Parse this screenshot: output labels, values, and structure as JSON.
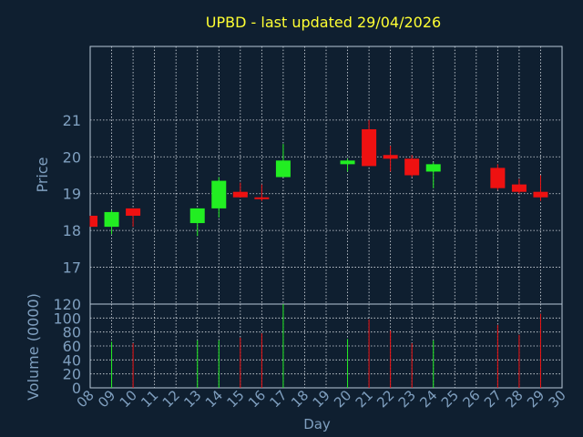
{
  "title": "UPBD - last updated 29/04/2026",
  "colors": {
    "background": "#0f1f30",
    "axis_text": "#7f9fbf",
    "title": "#ffff33",
    "grid": "#d8dde3",
    "up": "#22ee22",
    "down": "#ee1111",
    "frame": "#b8c8d8"
  },
  "chart_data": [
    {
      "type": "candlestick",
      "ylabel": "Price",
      "ylim": [
        16,
        23
      ],
      "yticks": [
        17,
        18,
        19,
        20,
        21
      ],
      "grid": true,
      "candles": [
        {
          "day": 8,
          "open": 18.4,
          "high": 18.4,
          "low": 18.1,
          "close": 18.1
        },
        {
          "day": 9,
          "open": 18.1,
          "high": 18.55,
          "low": 17.9,
          "close": 18.5
        },
        {
          "day": 10,
          "open": 18.6,
          "high": 18.6,
          "low": 18.1,
          "close": 18.4
        },
        {
          "day": 13,
          "open": 18.2,
          "high": 18.6,
          "low": 17.85,
          "close": 18.6
        },
        {
          "day": 14,
          "open": 18.6,
          "high": 19.45,
          "low": 18.35,
          "close": 19.35
        },
        {
          "day": 15,
          "open": 19.05,
          "high": 19.3,
          "low": 18.9,
          "close": 18.9
        },
        {
          "day": 16,
          "open": 18.9,
          "high": 19.25,
          "low": 18.8,
          "close": 18.85
        },
        {
          "day": 17,
          "open": 19.45,
          "high": 20.35,
          "low": 19.45,
          "close": 19.9
        },
        {
          "day": 20,
          "open": 19.8,
          "high": 19.95,
          "low": 19.6,
          "close": 19.9
        },
        {
          "day": 21,
          "open": 20.75,
          "high": 21.0,
          "low": 19.75,
          "close": 19.75
        },
        {
          "day": 22,
          "open": 20.05,
          "high": 20.3,
          "low": 19.6,
          "close": 19.95
        },
        {
          "day": 23,
          "open": 19.95,
          "high": 20.05,
          "low": 19.45,
          "close": 19.5
        },
        {
          "day": 24,
          "open": 19.6,
          "high": 19.85,
          "low": 19.15,
          "close": 19.8
        },
        {
          "day": 27,
          "open": 19.7,
          "high": 19.8,
          "low": 19.1,
          "close": 19.15
        },
        {
          "day": 28,
          "open": 19.25,
          "high": 19.4,
          "low": 19.0,
          "close": 19.05
        },
        {
          "day": 29,
          "open": 19.05,
          "high": 19.5,
          "low": 18.8,
          "close": 18.9
        }
      ]
    },
    {
      "type": "bar",
      "ylabel": "Volume (0000)",
      "ylim": [
        0,
        120
      ],
      "yticks": [
        0,
        20,
        40,
        60,
        80,
        100,
        120
      ],
      "grid": true,
      "bars": [
        {
          "day": 9,
          "value": 66,
          "direction": "up"
        },
        {
          "day": 10,
          "value": 64,
          "direction": "down"
        },
        {
          "day": 13,
          "value": 68,
          "direction": "up"
        },
        {
          "day": 14,
          "value": 68,
          "direction": "up"
        },
        {
          "day": 15,
          "value": 72,
          "direction": "down"
        },
        {
          "day": 16,
          "value": 78,
          "direction": "down"
        },
        {
          "day": 17,
          "value": 120,
          "direction": "up"
        },
        {
          "day": 20,
          "value": 70,
          "direction": "up"
        },
        {
          "day": 21,
          "value": 98,
          "direction": "down"
        },
        {
          "day": 22,
          "value": 82,
          "direction": "down"
        },
        {
          "day": 23,
          "value": 64,
          "direction": "down"
        },
        {
          "day": 24,
          "value": 68,
          "direction": "up"
        },
        {
          "day": 27,
          "value": 90,
          "direction": "down"
        },
        {
          "day": 28,
          "value": 76,
          "direction": "down"
        },
        {
          "day": 29,
          "value": 106,
          "direction": "down"
        }
      ]
    }
  ],
  "x_axis": {
    "label": "Day",
    "ticks": [
      "08",
      "09",
      "10",
      "11",
      "12",
      "13",
      "14",
      "15",
      "16",
      "17",
      "18",
      "19",
      "20",
      "21",
      "22",
      "23",
      "24",
      "25",
      "26",
      "27",
      "28",
      "29",
      "30"
    ]
  }
}
